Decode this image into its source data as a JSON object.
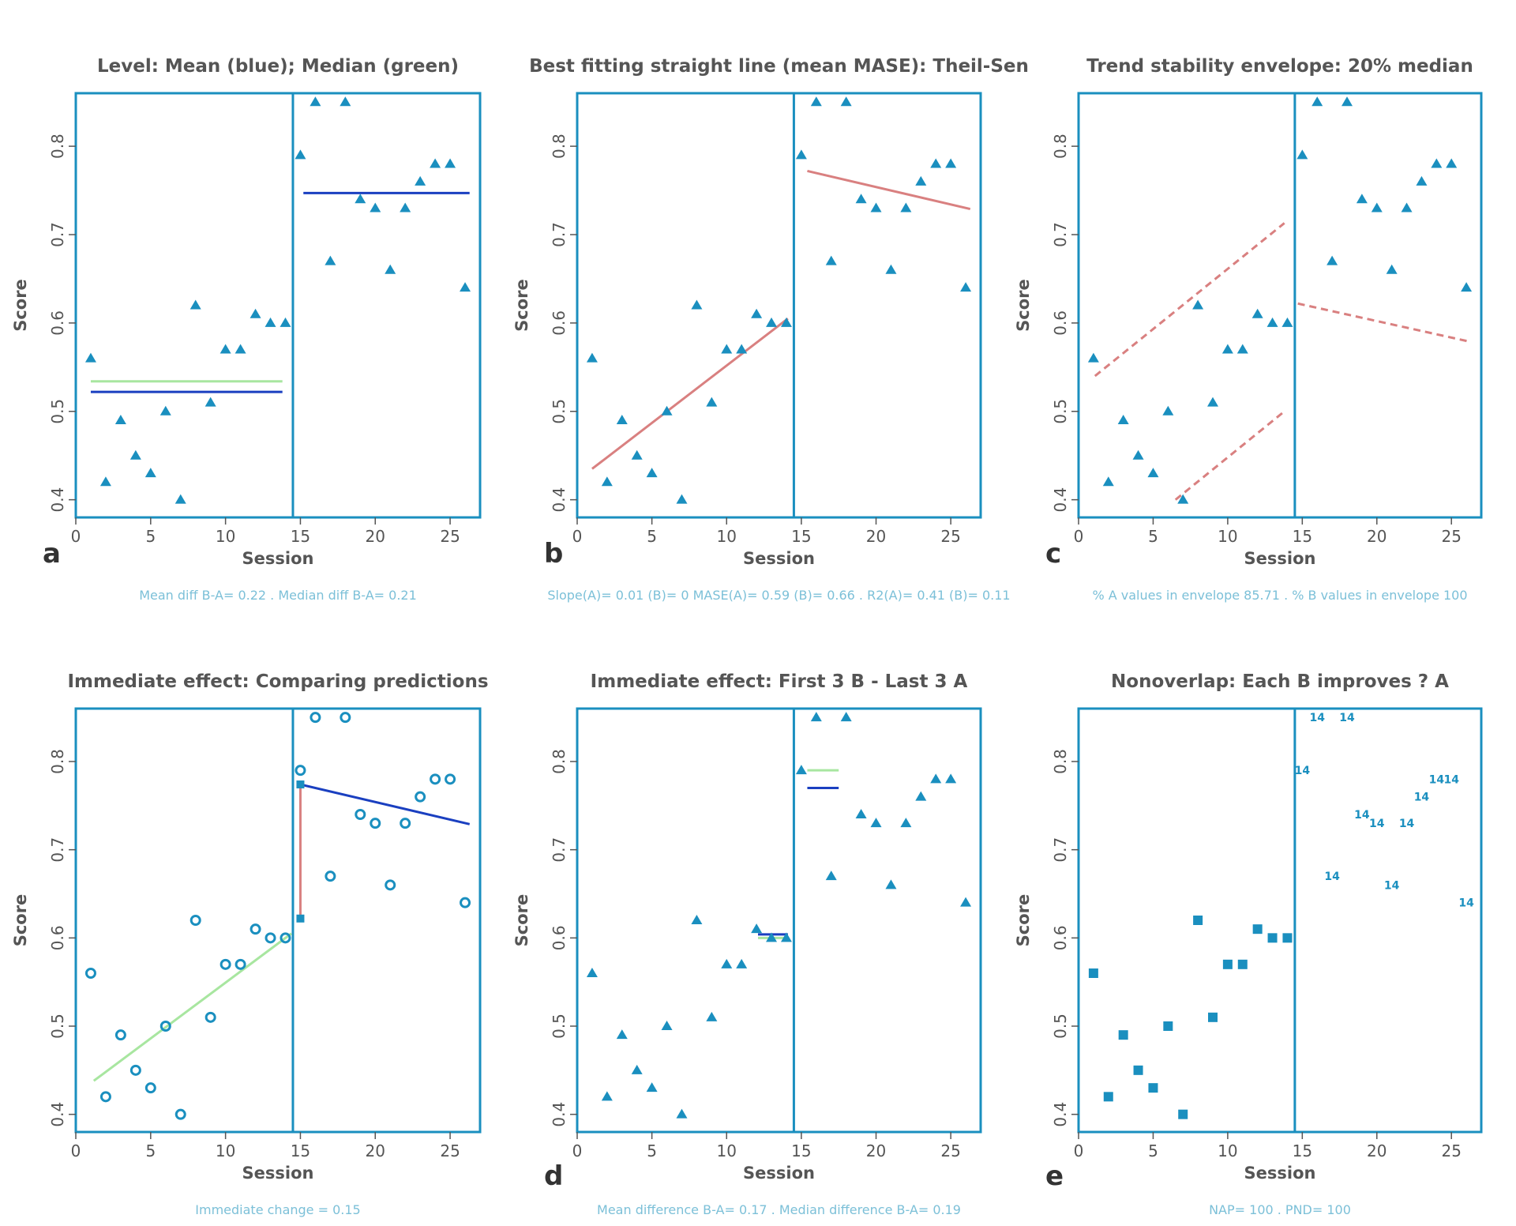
{
  "figure": {
    "colors": {
      "frame": "#1a8fbf",
      "marker": "#1a8fbf",
      "mean_line": "#1a3fc0",
      "median_line": "#a8e6a0",
      "trend_line": "#d98080",
      "text": "#555555",
      "caption": "#7cc0d8"
    }
  },
  "chart_data": [
    {
      "id": "a",
      "type": "scatter",
      "title": "Level: Mean (blue); Median (green)",
      "letter": "a",
      "caption": "Mean diff B-A= 0.22 . Median diff B-A= 0.21",
      "xlabel": "Session",
      "ylabel": "Score",
      "xlim": [
        0,
        27
      ],
      "ylim": [
        0.38,
        0.86
      ],
      "xticks": [
        0,
        5,
        10,
        15,
        20,
        25
      ],
      "yticks": [
        0.4,
        0.5,
        0.6,
        0.7,
        0.8
      ],
      "phase_change_x": 14.5,
      "marker": "triangle",
      "series": [
        {
          "x": [
            1,
            2,
            3,
            4,
            5,
            6,
            7,
            8,
            9,
            10,
            11,
            12,
            13,
            14
          ],
          "y": [
            0.56,
            0.42,
            0.49,
            0.45,
            0.43,
            0.5,
            0.4,
            0.62,
            0.51,
            0.57,
            0.57,
            0.61,
            0.6,
            0.6
          ]
        },
        {
          "x": [
            15,
            16,
            17,
            18,
            19,
            20,
            21,
            22,
            23,
            24,
            25,
            26
          ],
          "y": [
            0.79,
            0.85,
            0.67,
            0.85,
            0.74,
            0.73,
            0.66,
            0.73,
            0.76,
            0.78,
            0.78,
            0.64
          ]
        }
      ],
      "lines": [
        {
          "x": [
            1,
            13.8
          ],
          "y": [
            0.534,
            0.534
          ],
          "color": "#a8e6a0",
          "dash": false
        },
        {
          "x": [
            1,
            13.8
          ],
          "y": [
            0.522,
            0.522
          ],
          "color": "#1a3fc0",
          "dash": false
        },
        {
          "x": [
            15.2,
            26.3
          ],
          "y": [
            0.747,
            0.747
          ],
          "color": "#1a3fc0",
          "dash": false
        }
      ]
    },
    {
      "id": "b",
      "type": "scatter",
      "title": "Best fitting straight line (mean MASE): Theil-Sen",
      "letter": "b",
      "caption": "Slope(A)= 0.01 (B)= 0 MASE(A)= 0.59 (B)= 0.66 . R2(A)= 0.41 (B)= 0.11",
      "xlabel": "Session",
      "ylabel": "Score",
      "xlim": [
        0,
        27
      ],
      "ylim": [
        0.38,
        0.86
      ],
      "xticks": [
        0,
        5,
        10,
        15,
        20,
        25
      ],
      "yticks": [
        0.4,
        0.5,
        0.6,
        0.7,
        0.8
      ],
      "phase_change_x": 14.5,
      "marker": "triangle",
      "series": [
        {
          "x": [
            1,
            2,
            3,
            4,
            5,
            6,
            7,
            8,
            9,
            10,
            11,
            12,
            13,
            14
          ],
          "y": [
            0.56,
            0.42,
            0.49,
            0.45,
            0.43,
            0.5,
            0.4,
            0.62,
            0.51,
            0.57,
            0.57,
            0.61,
            0.6,
            0.6
          ]
        },
        {
          "x": [
            15,
            16,
            17,
            18,
            19,
            20,
            21,
            22,
            23,
            24,
            25,
            26
          ],
          "y": [
            0.79,
            0.85,
            0.67,
            0.85,
            0.74,
            0.73,
            0.66,
            0.73,
            0.76,
            0.78,
            0.78,
            0.64
          ]
        }
      ],
      "lines": [
        {
          "x": [
            1,
            14.1
          ],
          "y": [
            0.435,
            0.605
          ],
          "color": "#d98080",
          "dash": false
        },
        {
          "x": [
            15.4,
            26.3
          ],
          "y": [
            0.772,
            0.729
          ],
          "color": "#d98080",
          "dash": false
        }
      ]
    },
    {
      "id": "c",
      "type": "scatter",
      "title": "Trend stability envelope: 20% median",
      "letter": "c",
      "caption": "% A values in envelope 85.71 . % B values in envelope 100",
      "xlabel": "Session",
      "ylabel": "Score",
      "xlim": [
        0,
        27
      ],
      "ylim": [
        0.38,
        0.86
      ],
      "xticks": [
        0,
        5,
        10,
        15,
        20,
        25
      ],
      "yticks": [
        0.4,
        0.5,
        0.6,
        0.7,
        0.8
      ],
      "phase_change_x": 14.5,
      "marker": "triangle",
      "series": [
        {
          "x": [
            1,
            2,
            3,
            4,
            5,
            6,
            7,
            8,
            9,
            10,
            11,
            12,
            13,
            14
          ],
          "y": [
            0.56,
            0.42,
            0.49,
            0.45,
            0.43,
            0.5,
            0.4,
            0.62,
            0.51,
            0.57,
            0.57,
            0.61,
            0.6,
            0.6
          ]
        },
        {
          "x": [
            15,
            16,
            17,
            18,
            19,
            20,
            21,
            22,
            23,
            24,
            25,
            26
          ],
          "y": [
            0.79,
            0.85,
            0.67,
            0.85,
            0.74,
            0.73,
            0.66,
            0.73,
            0.76,
            0.78,
            0.78,
            0.64
          ]
        }
      ],
      "lines": [
        {
          "x": [
            1.1,
            13.8
          ],
          "y": [
            0.54,
            0.713
          ],
          "color": "#d98080",
          "dash": true
        },
        {
          "x": [
            6.5,
            13.8
          ],
          "y": [
            0.4,
            0.5
          ],
          "color": "#d98080",
          "dash": true
        },
        {
          "x": [
            14.7,
            26.2
          ],
          "y": [
            0.622,
            0.579
          ],
          "color": "#d98080",
          "dash": true
        }
      ]
    },
    {
      "id": "d",
      "type": "scatter",
      "title": "Immediate effect: Comparing predictions",
      "letter": "",
      "caption": "Immediate change = 0.15",
      "xlabel": "Session",
      "ylabel": "Score",
      "xlim": [
        0,
        27
      ],
      "ylim": [
        0.38,
        0.86
      ],
      "xticks": [
        0,
        5,
        10,
        15,
        20,
        25
      ],
      "yticks": [
        0.4,
        0.5,
        0.6,
        0.7,
        0.8
      ],
      "phase_change_x": 14.5,
      "marker": "circle",
      "series": [
        {
          "x": [
            1,
            2,
            3,
            4,
            5,
            6,
            7,
            8,
            9,
            10,
            11,
            12,
            13,
            14
          ],
          "y": [
            0.56,
            0.42,
            0.49,
            0.45,
            0.43,
            0.5,
            0.4,
            0.62,
            0.51,
            0.57,
            0.57,
            0.61,
            0.6,
            0.6
          ]
        },
        {
          "x": [
            15,
            16,
            17,
            18,
            19,
            20,
            21,
            22,
            23,
            24,
            25,
            26
          ],
          "y": [
            0.79,
            0.85,
            0.67,
            0.85,
            0.74,
            0.73,
            0.66,
            0.73,
            0.76,
            0.78,
            0.78,
            0.64
          ]
        }
      ],
      "lines": [
        {
          "x": [
            1.2,
            14.4
          ],
          "y": [
            0.438,
            0.605
          ],
          "color": "#a8e6a0",
          "dash": false
        },
        {
          "x": [
            15,
            26.3
          ],
          "y": [
            0.774,
            0.729
          ],
          "color": "#1a3fc0",
          "dash": false
        },
        {
          "x": [
            15,
            15
          ],
          "y": [
            0.622,
            0.774
          ],
          "color": "#d98080",
          "dash": false
        }
      ],
      "squares": [
        {
          "x": 15,
          "y": 0.774
        },
        {
          "x": 15,
          "y": 0.622
        }
      ]
    },
    {
      "id": "e",
      "type": "scatter",
      "title": "Immediate effect: First 3 B - Last 3 A",
      "letter": "d",
      "caption": "Mean difference B-A= 0.17 . Median difference B-A= 0.19",
      "xlabel": "Session",
      "ylabel": "Score",
      "xlim": [
        0,
        27
      ],
      "ylim": [
        0.38,
        0.86
      ],
      "xticks": [
        0,
        5,
        10,
        15,
        20,
        25
      ],
      "yticks": [
        0.4,
        0.5,
        0.6,
        0.7,
        0.8
      ],
      "phase_change_x": 14.5,
      "marker": "triangle",
      "series": [
        {
          "x": [
            1,
            2,
            3,
            4,
            5,
            6,
            7,
            8,
            9,
            10,
            11,
            12,
            13,
            14
          ],
          "y": [
            0.56,
            0.42,
            0.49,
            0.45,
            0.43,
            0.5,
            0.4,
            0.62,
            0.51,
            0.57,
            0.57,
            0.61,
            0.6,
            0.6
          ]
        },
        {
          "x": [
            15,
            16,
            17,
            18,
            19,
            20,
            21,
            22,
            23,
            24,
            25,
            26
          ],
          "y": [
            0.79,
            0.85,
            0.67,
            0.85,
            0.74,
            0.73,
            0.66,
            0.73,
            0.76,
            0.78,
            0.78,
            0.64
          ]
        }
      ],
      "lines": [
        {
          "x": [
            12.1,
            14.1
          ],
          "y": [
            0.6,
            0.6
          ],
          "color": "#a8e6a0",
          "dash": false
        },
        {
          "x": [
            12.1,
            14.1
          ],
          "y": [
            0.604,
            0.604
          ],
          "color": "#1a3fc0",
          "dash": false
        },
        {
          "x": [
            15.4,
            17.5
          ],
          "y": [
            0.79,
            0.79
          ],
          "color": "#a8e6a0",
          "dash": false
        },
        {
          "x": [
            15.4,
            17.5
          ],
          "y": [
            0.77,
            0.77
          ],
          "color": "#1a3fc0",
          "dash": false
        }
      ]
    },
    {
      "id": "f",
      "type": "scatter",
      "title": "Nonoverlap: Each B improves ? A",
      "letter": "e",
      "caption": "NAP= 100 . PND= 100",
      "xlabel": "Session",
      "ylabel": "Score",
      "xlim": [
        0,
        27
      ],
      "ylim": [
        0.38,
        0.86
      ],
      "xticks": [
        0,
        5,
        10,
        15,
        20,
        25
      ],
      "yticks": [
        0.4,
        0.5,
        0.6,
        0.7,
        0.8
      ],
      "phase_change_x": 14.5,
      "marker": "square",
      "series": [
        {
          "x": [
            1,
            2,
            3,
            4,
            5,
            6,
            7,
            8,
            9,
            10,
            11,
            12,
            13,
            14
          ],
          "y": [
            0.56,
            0.42,
            0.49,
            0.45,
            0.43,
            0.5,
            0.4,
            0.62,
            0.51,
            0.57,
            0.57,
            0.61,
            0.6,
            0.6
          ]
        }
      ],
      "labels": {
        "text": "14",
        "x": [
          15,
          16,
          17,
          18,
          19,
          20,
          21,
          22,
          23,
          24,
          25,
          26
        ],
        "y": [
          0.79,
          0.85,
          0.67,
          0.85,
          0.74,
          0.73,
          0.66,
          0.73,
          0.76,
          0.78,
          0.78,
          0.64
        ]
      },
      "lines": []
    }
  ]
}
